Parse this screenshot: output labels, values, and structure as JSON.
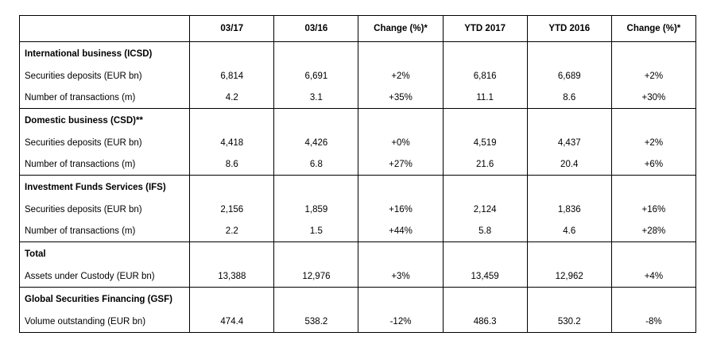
{
  "columns": [
    "03/17",
    "03/16",
    "Change (%)*",
    "YTD 2017",
    "YTD 2016",
    "Change (%)*"
  ],
  "sections": [
    {
      "title": "International business (ICSD)",
      "rows": [
        {
          "label": "Securities deposits (EUR bn)",
          "values": [
            "6,814",
            "6,691",
            "+2%",
            "6,816",
            "6,689",
            "+2%"
          ]
        },
        {
          "label": "Number of transactions (m)",
          "values": [
            "4.2",
            "3.1",
            "+35%",
            "11.1",
            "8.6",
            "+30%"
          ]
        }
      ]
    },
    {
      "title": "Domestic business (CSD)**",
      "rows": [
        {
          "label": "Securities deposits (EUR bn)",
          "values": [
            "4,418",
            "4,426",
            "+0%",
            "4,519",
            "4,437",
            "+2%"
          ]
        },
        {
          "label": "Number of transactions (m)",
          "values": [
            "8.6",
            "6.8",
            "+27%",
            "21.6",
            "20.4",
            "+6%"
          ]
        }
      ]
    },
    {
      "title": "Investment Funds Services (IFS)",
      "rows": [
        {
          "label": "Securities deposits (EUR bn)",
          "values": [
            "2,156",
            "1,859",
            "+16%",
            "2,124",
            "1,836",
            "+16%"
          ]
        },
        {
          "label": "Number of transactions (m)",
          "values": [
            "2.2",
            "1.5",
            "+44%",
            "5.8",
            "4.6",
            "+28%"
          ]
        }
      ]
    },
    {
      "title": "Total",
      "rows": [
        {
          "label": "Assets under Custody (EUR bn)",
          "values": [
            "13,388",
            "12,976",
            "+3%",
            "13,459",
            "12,962",
            "+4%"
          ]
        }
      ]
    },
    {
      "title": "Global Securities Financing (GSF)",
      "rows": [
        {
          "label": "Volume outstanding (EUR bn)",
          "values": [
            "474.4",
            "538.2",
            "-12%",
            "486.3",
            "530.2",
            "-8%"
          ]
        }
      ]
    }
  ]
}
